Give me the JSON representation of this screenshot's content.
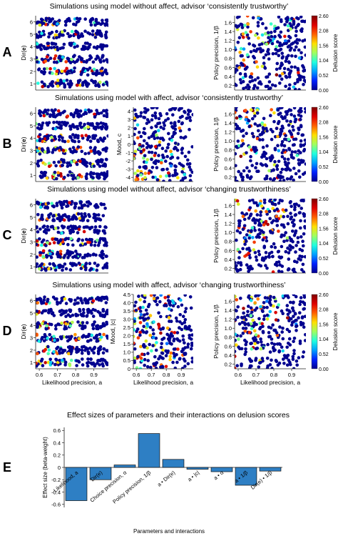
{
  "panels": [
    {
      "letter": "A",
      "title": "Simulations using model without affect, advisor ‘consistently trustworthy’",
      "plots": [
        "dir",
        "policy"
      ],
      "xticks": false
    },
    {
      "letter": "B",
      "title": "Simulations using model with affect, advisor ‘consistently trustworthy’",
      "plots": [
        "dir",
        "mood",
        "policy"
      ],
      "xticks": false
    },
    {
      "letter": "C",
      "title": "Simulations using model without affect, advisor ‘changing trustworthiness’",
      "plots": [
        "dir",
        "policy"
      ],
      "xticks": false
    },
    {
      "letter": "D",
      "title": "Simulations using model with affect, advisor ‘changing trustworthiness’",
      "plots": [
        "dir",
        "absmood",
        "policy"
      ],
      "xticks": true
    }
  ],
  "axes": {
    "dir": {
      "ylabel": "Dir(e)",
      "ylabel_main": "Dir(",
      "ylabel_bold": "e",
      "ylabel_end": ")",
      "ylim": [
        0.5,
        6.5
      ],
      "yticks": [
        "1",
        "2",
        "3",
        "4",
        "5",
        "6"
      ]
    },
    "mood": {
      "ylabel": "Mood, c",
      "ylim": [
        -4.5,
        4.5
      ],
      "yticks": [
        "-4",
        "-3",
        "-2",
        "-1",
        "0",
        "1",
        "2",
        "3",
        "4"
      ]
    },
    "absmood": {
      "ylabel": "Mood, |c|",
      "ylim": [
        0,
        4.5
      ],
      "yticks": [
        "0",
        "0.5",
        "1.0",
        "1.5",
        "2.0",
        "2.5",
        "3.0",
        "3.5",
        "4.0",
        "4.5"
      ]
    },
    "policy": {
      "ylabel": "Policy precision, 1/β",
      "ylim": [
        0.1,
        1.75
      ],
      "yticks": [
        "0.2",
        "0.4",
        "0.6",
        "0.8",
        "1.0",
        "1.2",
        "1.4",
        "1.6"
      ]
    },
    "x": {
      "label": "Likelihood precision, a",
      "xlim": [
        0.58,
        0.98
      ],
      "xticks": [
        "0.6",
        "0.7",
        "0.8",
        "0.9"
      ]
    }
  },
  "colorbar": {
    "label": "Delusion score",
    "ticks": [
      "2.60",
      "2.08",
      "1.56",
      "1.04",
      "0.52",
      "0.00"
    ],
    "colors": [
      "#00008f",
      "#0020ff",
      "#00a0ff",
      "#20ffdf",
      "#9fff60",
      "#ffe000",
      "#ff6000",
      "#df0000",
      "#800000"
    ]
  },
  "panelE": {
    "letter": "E",
    "chart_data": {
      "type": "bar",
      "title": "Effect sizes of parameters and their interactions on delusion scores",
      "ylabel": "Effect size (beta-weight)",
      "xlabel": "Parameters and interactions",
      "ylim": [
        -0.65,
        0.65
      ],
      "yticks": [
        "-0.6",
        "-0.4",
        "-0.2",
        "0",
        "0.2",
        "0.4",
        "0.6"
      ],
      "bar_color": "#2e7fc4",
      "categories": [
        "Likelihood, a",
        "Dir(e)",
        "Choice precision, α",
        "Policy precision, 1/β",
        "a • Dir(e)",
        "a • |c|",
        "a • α",
        "a • 1/β",
        "Dir(e) • 1/β"
      ],
      "values": [
        -0.54,
        -0.2,
        0.04,
        0.55,
        0.13,
        -0.03,
        -0.07,
        -0.29,
        -0.06
      ]
    }
  }
}
